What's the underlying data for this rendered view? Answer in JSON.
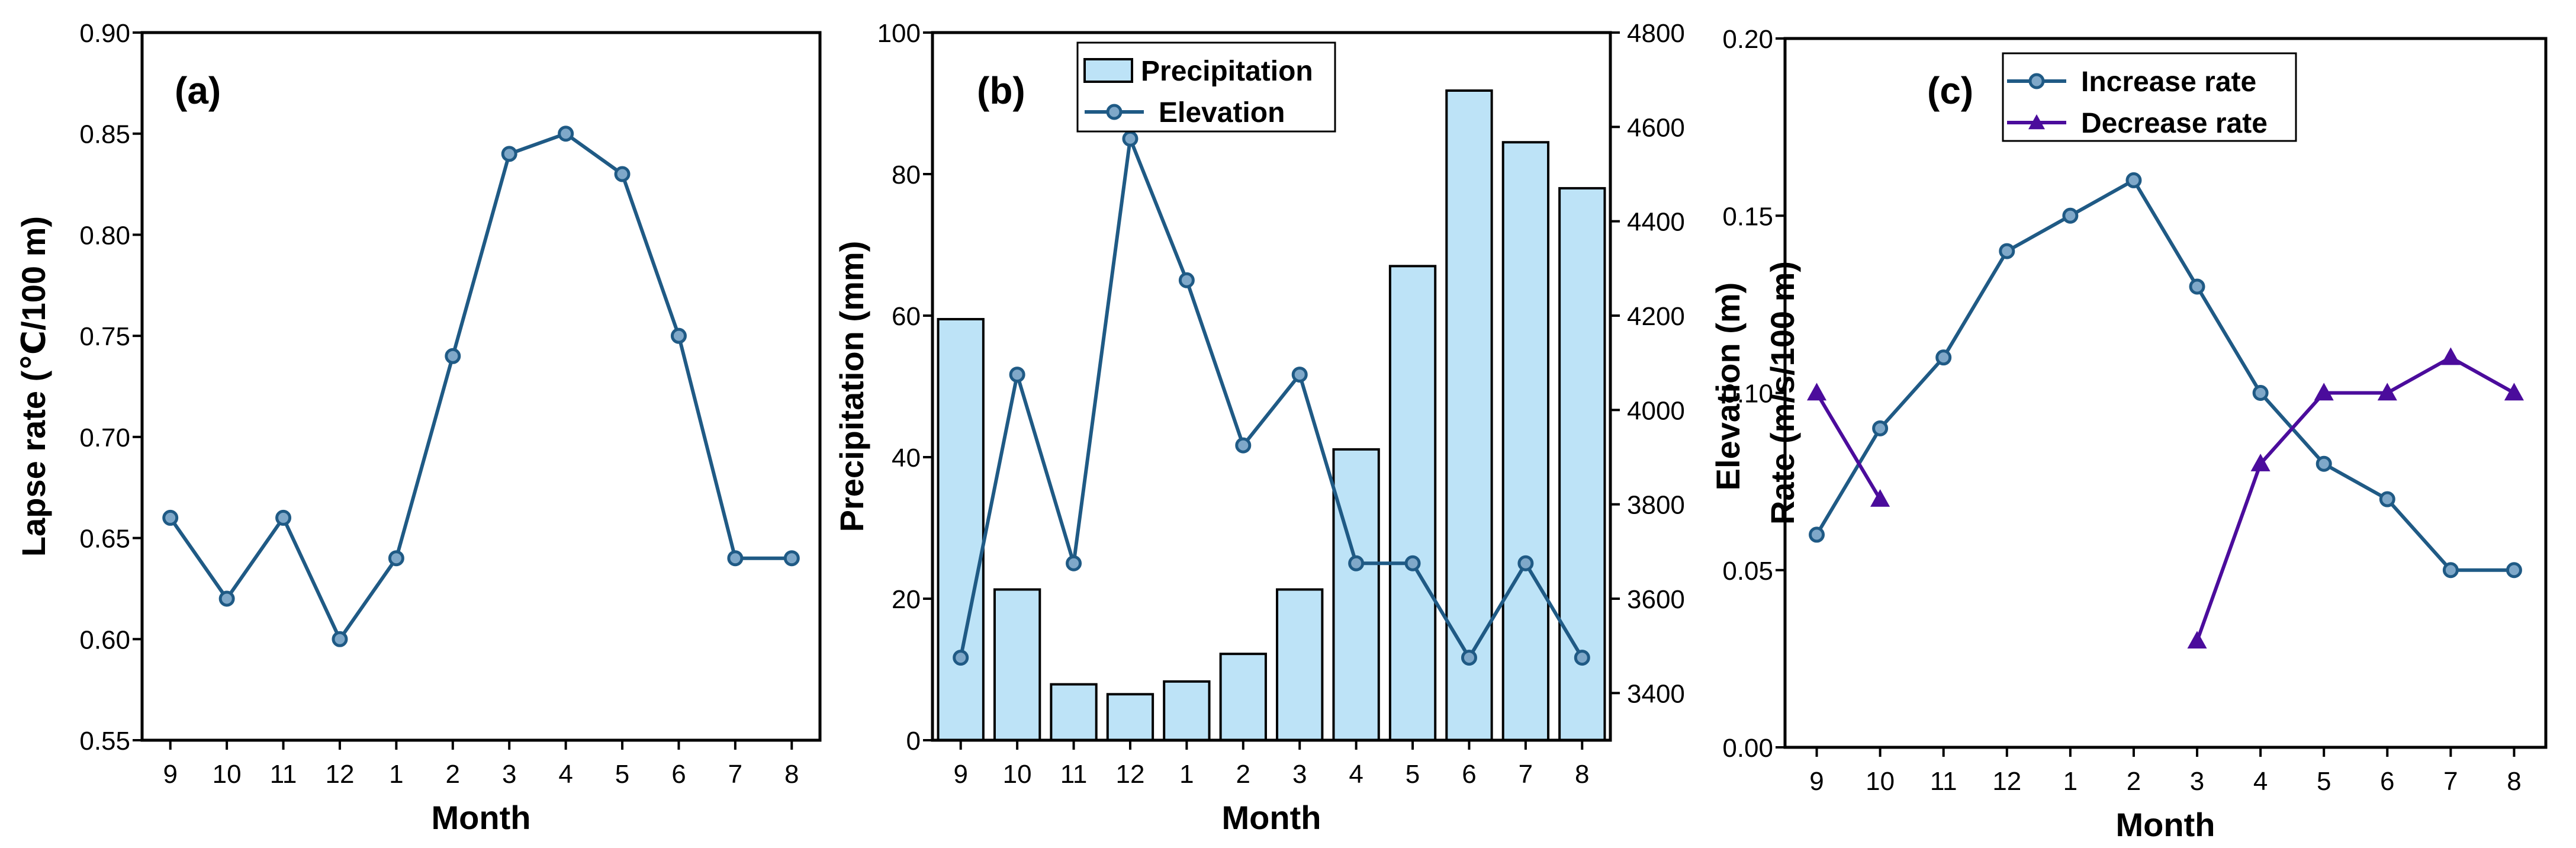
{
  "colors": {
    "line_blue": "#1f5a85",
    "marker_fill": "#7fa8c9",
    "bar_fill": "#bde3f7",
    "decrease_purple": "#4b0c9c",
    "axis": "#000000"
  },
  "chart_data": [
    {
      "panel_label": "(a)",
      "type": "line",
      "xlabel": "Month",
      "ylabel": "Lapse rate (℃/100 m)",
      "categories": [
        "9",
        "10",
        "11",
        "12",
        "1",
        "2",
        "3",
        "4",
        "5",
        "6",
        "7",
        "8"
      ],
      "ylim": [
        0.55,
        0.9
      ],
      "yticks": [
        "0.55",
        "0.60",
        "0.65",
        "0.70",
        "0.75",
        "0.80",
        "0.85",
        "0.90"
      ],
      "series": [
        {
          "values": [
            0.66,
            0.62,
            0.66,
            0.6,
            0.64,
            0.74,
            0.84,
            0.85,
            0.83,
            0.75,
            0.64,
            0.64
          ]
        }
      ],
      "grid": false
    },
    {
      "panel_label": "(b)",
      "type": "bar",
      "xlabel": "Month",
      "ylabel": "Precipitation (mm)",
      "y2label": "Elevation (m)",
      "categories": [
        "9",
        "10",
        "11",
        "12",
        "1",
        "2",
        "3",
        "4",
        "5",
        "6",
        "7",
        "8"
      ],
      "ylim": [
        0,
        100
      ],
      "yticks": [
        "0",
        "20",
        "40",
        "60",
        "80",
        "100"
      ],
      "y2lim": [
        3300,
        4800
      ],
      "y2ticks": [
        "3400",
        "3600",
        "3800",
        "4000",
        "4200",
        "4400",
        "4600",
        "4800"
      ],
      "legend_position": "top-center",
      "series": [
        {
          "name": "Precipitation",
          "type": "bar",
          "axis": "left",
          "values": [
            59.5,
            21.3,
            7.9,
            6.5,
            8.3,
            12.2,
            21.3,
            41.1,
            67.0,
            91.8,
            84.5,
            78.0
          ]
        },
        {
          "name": "Elevation",
          "type": "line",
          "axis": "right",
          "values": [
            3475,
            4075,
            3675,
            4575,
            4275,
            3925,
            4075,
            3675,
            3675,
            3475,
            3675,
            3475
          ]
        }
      ],
      "grid": false
    },
    {
      "panel_label": "(c)",
      "type": "line",
      "xlabel": "Month",
      "ylabel": "Rate (m/s/100 m)",
      "categories": [
        "9",
        "10",
        "11",
        "12",
        "1",
        "2",
        "3",
        "4",
        "5",
        "6",
        "7",
        "8"
      ],
      "ylim": [
        0.0,
        0.2
      ],
      "yticks": [
        "0.00",
        "0.05",
        "0.10",
        "0.15",
        "0.20"
      ],
      "legend_position": "top-center",
      "series": [
        {
          "name": "Increase rate",
          "marker": "circle",
          "values": [
            0.06,
            0.09,
            0.11,
            0.14,
            0.15,
            0.16,
            0.13,
            0.1,
            0.08,
            0.07,
            0.05,
            0.05
          ]
        },
        {
          "name": "Decrease rate",
          "marker": "triangle",
          "values": [
            0.1,
            0.07,
            null,
            null,
            null,
            null,
            0.03,
            0.08,
            0.1,
            0.1,
            0.11,
            0.1
          ]
        }
      ],
      "grid": false
    }
  ]
}
